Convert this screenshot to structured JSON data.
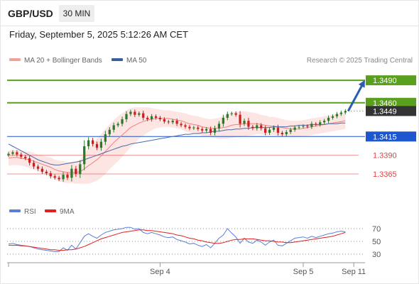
{
  "header": {
    "symbol": "GBP/USD",
    "timeframe": "30 MIN",
    "datetime": "Friday, September 5, 2025 5:12:26 AM CET",
    "copyright": "Research © 2025 Trading Central"
  },
  "legend": {
    "main": [
      {
        "label": "MA 20 + Bollinger Bands",
        "color": "#f4a09a"
      },
      {
        "label": "MA 50",
        "color": "#3a5fa0"
      }
    ],
    "rsi": [
      {
        "label": "RSI",
        "color": "#5b7fd6"
      },
      {
        "label": "9MA",
        "color": "#e02020"
      }
    ]
  },
  "chart_data": [
    {
      "type": "candlestick",
      "ylim": [
        1.333,
        1.351
      ],
      "xlim": [
        0,
        84
      ],
      "x_ticks": [
        {
          "x": 36,
          "label": "Sep 4"
        },
        {
          "x": 70,
          "label": "Sep 5"
        },
        {
          "x": 82,
          "label": "Sep 11"
        }
      ],
      "levels": [
        {
          "value": 1.349,
          "label": "1.3490",
          "kind": "resistance",
          "color": "#5aa01e"
        },
        {
          "value": 1.346,
          "label": "1.3460",
          "kind": "resistance",
          "color": "#5aa01e"
        },
        {
          "value": 1.3449,
          "label": "1.3449",
          "kind": "last_price",
          "color": "#333333"
        },
        {
          "value": 1.3415,
          "label": "1.3415",
          "kind": "pivot",
          "color": "#1e56d0"
        },
        {
          "value": 1.339,
          "label": "1.3390",
          "kind": "support",
          "color": "#e04040"
        },
        {
          "value": 1.3365,
          "label": "1.3365",
          "kind": "support",
          "color": "#e04040"
        }
      ],
      "close": [
        1.3392,
        1.3394,
        1.3391,
        1.3388,
        1.3386,
        1.338,
        1.3375,
        1.3372,
        1.3368,
        1.3366,
        1.3362,
        1.336,
        1.3358,
        1.3364,
        1.336,
        1.3372,
        1.3365,
        1.3378,
        1.3402,
        1.341,
        1.3405,
        1.34,
        1.3408,
        1.3418,
        1.3424,
        1.343,
        1.3432,
        1.3438,
        1.3445,
        1.3448,
        1.3444,
        1.3446,
        1.344,
        1.3438,
        1.3442,
        1.344,
        1.3438,
        1.3435,
        1.3434,
        1.3436,
        1.3432,
        1.343,
        1.3428,
        1.3426,
        1.3427,
        1.3425,
        1.3423,
        1.3425,
        1.342,
        1.3426,
        1.3432,
        1.344,
        1.3445,
        1.3446,
        1.3444,
        1.3432,
        1.3436,
        1.3428,
        1.3426,
        1.343,
        1.3426,
        1.342,
        1.3424,
        1.3427,
        1.342,
        1.3418,
        1.3421,
        1.3424,
        1.3427,
        1.3428,
        1.3429,
        1.3428,
        1.3432,
        1.3431,
        1.3434,
        1.3436,
        1.344,
        1.3442,
        1.3445,
        1.3447,
        1.3449
      ],
      "ma20": [
        1.3386,
        1.3387,
        1.3387,
        1.3386,
        1.3385,
        1.3384,
        1.3382,
        1.338,
        1.3378,
        1.3376,
        1.3374,
        1.3371,
        1.3369,
        1.3368,
        1.3367,
        1.3367,
        1.3367,
        1.3368,
        1.3372,
        1.3376,
        1.338,
        1.3384,
        1.3389,
        1.3395,
        1.3401,
        1.3407,
        1.3412,
        1.3417,
        1.3422,
        1.3427,
        1.343,
        1.3433,
        1.3435,
        1.3437,
        1.3438,
        1.3439,
        1.3439,
        1.3439,
        1.3439,
        1.3438,
        1.3437,
        1.3436,
        1.3434,
        1.3432,
        1.3431,
        1.343,
        1.3428,
        1.3427,
        1.3426,
        1.3426,
        1.3426,
        1.3427,
        1.3428,
        1.343,
        1.3431,
        1.3431,
        1.3432,
        1.3432,
        1.3432,
        1.3432,
        1.3431,
        1.343,
        1.3429,
        1.3429,
        1.3428,
        1.3427,
        1.3426,
        1.3425,
        1.3425,
        1.3425,
        1.3426,
        1.3427,
        1.3428,
        1.3429,
        1.343,
        1.3431,
        1.3432,
        1.3433,
        1.3434,
        1.3435,
        1.3436
      ],
      "bb_half_width": [
        0.001,
        0.001,
        0.001,
        0.001,
        0.001,
        0.0011,
        0.0011,
        0.0011,
        0.0012,
        0.0012,
        0.0013,
        0.0013,
        0.0014,
        0.0014,
        0.0014,
        0.0014,
        0.0015,
        0.0016,
        0.002,
        0.0024,
        0.0026,
        0.0028,
        0.0029,
        0.003,
        0.003,
        0.003,
        0.003,
        0.0029,
        0.0028,
        0.0026,
        0.0024,
        0.0021,
        0.0019,
        0.0017,
        0.0015,
        0.0013,
        0.0012,
        0.0011,
        0.0011,
        0.0011,
        0.0011,
        0.0011,
        0.0012,
        0.0012,
        0.0012,
        0.0012,
        0.0012,
        0.0012,
        0.0012,
        0.0013,
        0.0014,
        0.0015,
        0.0016,
        0.0017,
        0.0017,
        0.0017,
        0.0017,
        0.0016,
        0.0015,
        0.0014,
        0.0013,
        0.0013,
        0.0012,
        0.0012,
        0.0012,
        0.0011,
        0.0011,
        0.0011,
        0.0011,
        0.0011,
        0.0011,
        0.0011,
        0.0011,
        0.0011,
        0.0011,
        0.0011,
        0.0011,
        0.0011,
        0.0011,
        0.0011,
        0.0011
      ],
      "ma50": [
        1.3405,
        1.3402,
        1.3399,
        1.3396,
        1.3393,
        1.339,
        1.3387,
        1.3384,
        1.3382,
        1.338,
        1.3378,
        1.3377,
        1.3377,
        1.3378,
        1.3379,
        1.338,
        1.3381,
        1.3382,
        1.3384,
        1.3386,
        1.3388,
        1.339,
        1.3392,
        1.3394,
        1.3396,
        1.3398,
        1.34,
        1.3402,
        1.3403,
        1.3405,
        1.3406,
        1.3407,
        1.3408,
        1.3409,
        1.341,
        1.3411,
        1.3412,
        1.3413,
        1.3414,
        1.3415,
        1.3416,
        1.3417,
        1.3418,
        1.3418,
        1.3419,
        1.3419,
        1.342,
        1.342,
        1.3421,
        1.3422,
        1.3422,
        1.3423,
        1.3424,
        1.3424,
        1.3425,
        1.3425,
        1.3426,
        1.3426,
        1.3427,
        1.3427,
        1.3427,
        1.3427,
        1.3427,
        1.3428,
        1.3428,
        1.3428,
        1.3428,
        1.3429,
        1.3429,
        1.343,
        1.343,
        1.343,
        1.3431,
        1.3431,
        1.3431,
        1.3431,
        1.3432,
        1.3432,
        1.3432,
        1.3433,
        1.3433
      ]
    },
    {
      "type": "line",
      "ylim": [
        20,
        80
      ],
      "y_ticks": [
        70,
        50,
        30
      ],
      "series": [
        {
          "name": "RSI",
          "color": "#5b7fd6",
          "values": [
            46,
            47,
            45,
            44,
            43,
            42,
            40,
            38,
            37,
            36,
            35,
            34,
            34,
            40,
            36,
            44,
            38,
            48,
            58,
            62,
            58,
            55,
            60,
            64,
            66,
            68,
            69,
            70,
            72,
            72,
            69,
            70,
            64,
            62,
            64,
            62,
            60,
            57,
            56,
            57,
            53,
            51,
            49,
            46,
            47,
            44,
            42,
            45,
            40,
            47,
            55,
            60,
            70,
            63,
            57,
            47,
            55,
            49,
            47,
            52,
            49,
            44,
            49,
            52,
            44,
            43,
            47,
            51,
            55,
            56,
            57,
            55,
            58,
            56,
            58,
            60,
            62,
            63,
            65,
            66,
            65
          ]
        },
        {
          "name": "9MA",
          "color": "#e02020",
          "values": [
            44,
            44,
            44,
            43,
            43,
            42,
            41,
            40,
            39,
            38,
            37,
            37,
            36,
            36,
            37,
            37,
            38,
            40,
            42,
            45,
            48,
            51,
            54,
            56,
            58,
            60,
            62,
            64,
            65,
            66,
            67,
            68,
            68,
            67,
            67,
            66,
            65,
            64,
            63,
            62,
            60,
            59,
            57,
            55,
            54,
            52,
            51,
            49,
            48,
            47,
            47,
            48,
            50,
            52,
            53,
            53,
            54,
            54,
            54,
            53,
            52,
            51,
            51,
            50,
            49,
            49,
            48,
            48,
            49,
            50,
            51,
            52,
            53,
            54,
            55,
            56,
            57,
            58,
            60,
            62,
            64
          ]
        }
      ]
    }
  ]
}
